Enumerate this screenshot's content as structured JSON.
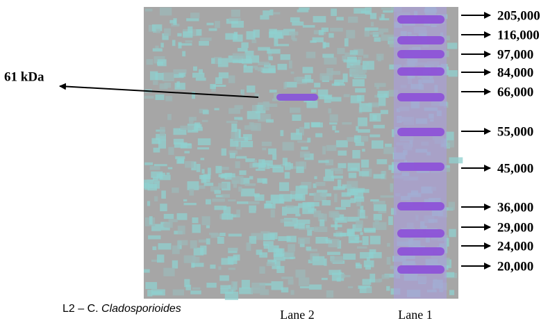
{
  "annotation": {
    "label": "61 kDa"
  },
  "markers": [
    {
      "label": "205,000"
    },
    {
      "label": "116,000"
    },
    {
      "label": "97,000"
    },
    {
      "label": "84,000"
    },
    {
      "label": "66,000"
    },
    {
      "label": "55,000"
    },
    {
      "label": "45,000"
    },
    {
      "label": "36,000"
    },
    {
      "label": "29,000"
    },
    {
      "label": "24,000"
    },
    {
      "label": "20,000"
    }
  ],
  "lanes": [
    {
      "label": "Lane 2"
    },
    {
      "label": "Lane 1"
    }
  ],
  "caption": {
    "prefix": "L2 – C.",
    "species": "Cladosporioides"
  }
}
